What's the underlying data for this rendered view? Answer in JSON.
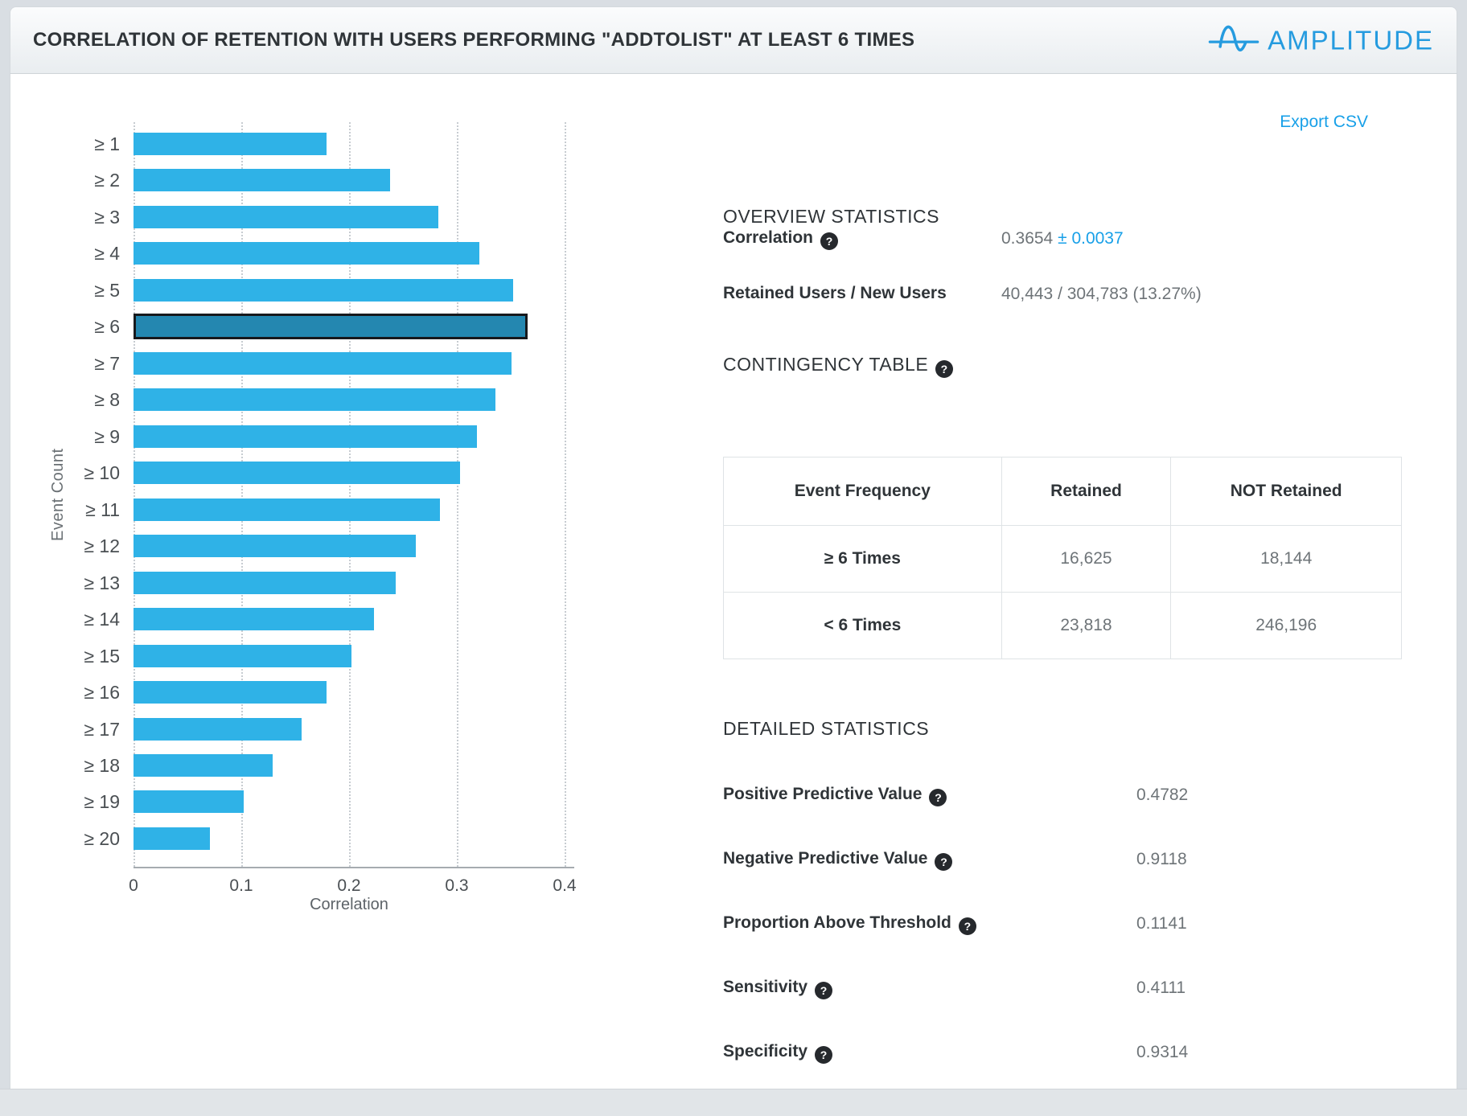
{
  "header": {
    "title": "CORRELATION OF RETENTION WITH USERS PERFORMING \"ADDTOLIST\" AT LEAST 6 TIMES",
    "brand": "AMPLITUDE"
  },
  "toolbar": {
    "export_csv_label": "Export CSV"
  },
  "chart_data": {
    "type": "bar",
    "orientation": "horizontal",
    "xlabel": "Correlation",
    "ylabel": "Event Count",
    "xlim": [
      0,
      0.4
    ],
    "xtick_labels": [
      "0",
      "0.1",
      "0.2",
      "0.3",
      "0.4"
    ],
    "grid": "dashed-vertical",
    "categories": [
      "≥ 1",
      "≥ 2",
      "≥ 3",
      "≥ 4",
      "≥ 5",
      "≥ 6",
      "≥ 7",
      "≥ 8",
      "≥ 9",
      "≥ 10",
      "≥ 11",
      "≥ 12",
      "≥ 13",
      "≥ 14",
      "≥ 15",
      "≥ 16",
      "≥ 17",
      "≥ 18",
      "≥ 19",
      "≥ 20"
    ],
    "values": [
      0.179,
      0.238,
      0.283,
      0.321,
      0.352,
      0.3654,
      0.351,
      0.336,
      0.319,
      0.303,
      0.284,
      0.262,
      0.243,
      0.223,
      0.202,
      0.179,
      0.156,
      0.129,
      0.102,
      0.071
    ],
    "highlight_index": 5,
    "bar_color": "#2fb2e7",
    "highlight_color": "#2487b0"
  },
  "overview": {
    "heading": "OVERVIEW STATISTICS",
    "correlation_label": "Correlation",
    "correlation_value": "0.3654",
    "correlation_ci": "± 0.0037",
    "retained_label": "Retained Users / New Users",
    "retained_value": "40,443 / 304,783 (13.27%)"
  },
  "contingency": {
    "heading": "CONTINGENCY TABLE",
    "columns": [
      "Event Frequency",
      "Retained",
      "NOT Retained"
    ],
    "rows": [
      {
        "freq": "≥ 6 Times",
        "retained": "16,625",
        "not_retained": "18,144"
      },
      {
        "freq": "< 6 Times",
        "retained": "23,818",
        "not_retained": "246,196"
      }
    ]
  },
  "detailed": {
    "heading": "DETAILED STATISTICS",
    "rows": [
      {
        "label": "Positive Predictive Value",
        "value": "0.4782"
      },
      {
        "label": "Negative Predictive Value",
        "value": "0.9118"
      },
      {
        "label": "Proportion Above Threshold",
        "value": "0.1141"
      },
      {
        "label": "Sensitivity",
        "value": "0.4111"
      },
      {
        "label": "Specificity",
        "value": "0.9314"
      }
    ]
  },
  "icons": {
    "help_glyph": "?"
  },
  "colors": {
    "accent_blue": "#18a0e8",
    "logo_blue": "#259bdf",
    "heading_dark": "#2f3438",
    "value_gray": "#6e7478"
  }
}
